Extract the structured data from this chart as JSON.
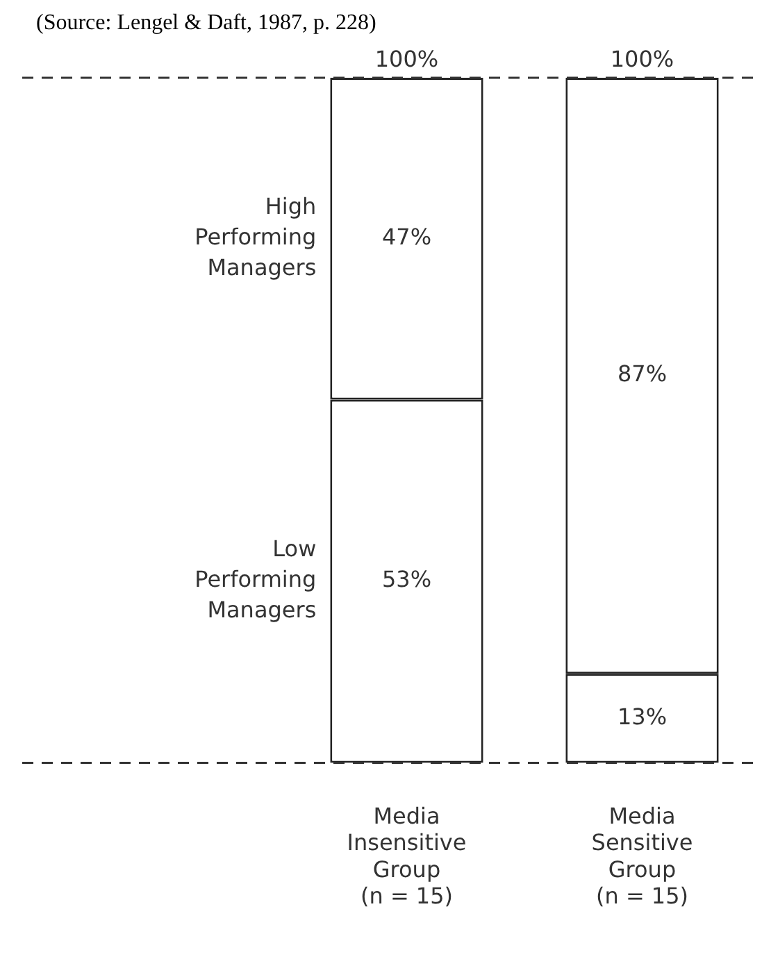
{
  "chart_data": {
    "type": "bar",
    "stacked": true,
    "categories": [
      "Media\nInsensitive\nGroup\n(n = 15)",
      "Media\nSensitive\nGroup\n(n = 15)"
    ],
    "series": [
      {
        "name": "Low\nPerforming\nManagers",
        "color": "#ffffff",
        "values": [
          53,
          13
        ],
        "value_labels": [
          "53%",
          "13%"
        ]
      },
      {
        "name": "High\nPerforming\nManagers",
        "color": "#ffffff",
        "values": [
          47,
          87
        ],
        "value_labels": [
          "47%",
          "87%"
        ]
      }
    ],
    "totals": [
      "100%",
      "100%"
    ],
    "legend": false,
    "grid": false,
    "tick_labels": "x",
    "annotations": [
      "(Source: Lengel & Daft, 1987, p. 228)"
    ]
  }
}
